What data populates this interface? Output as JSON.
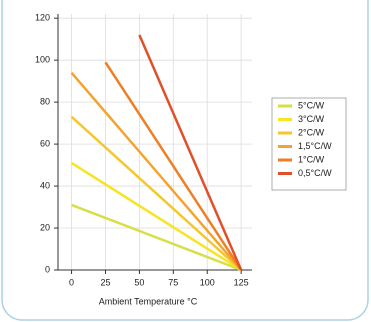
{
  "chart_data": {
    "type": "line",
    "x_label": "Ambient Temperature °C",
    "xlim": [
      -10,
      133
    ],
    "xticks": [
      0,
      25,
      50,
      75,
      100,
      125
    ],
    "ylim": [
      0,
      122
    ],
    "yticks": [
      0,
      20,
      40,
      60,
      80,
      100,
      120
    ],
    "grid": true,
    "legend": "right",
    "series": [
      {
        "name": "5°C/W",
        "color": "#d6df45",
        "x": [
          0,
          125
        ],
        "values": [
          31,
          0
        ]
      },
      {
        "name": "3°C/W",
        "color": "#f6e425",
        "x": [
          0,
          125
        ],
        "values": [
          51,
          0
        ]
      },
      {
        "name": "2°C/W",
        "color": "#f6c72c",
        "x": [
          0,
          125
        ],
        "values": [
          73,
          0
        ]
      },
      {
        "name": "1,5°C/W",
        "color": "#f4a42e",
        "x": [
          0,
          125
        ],
        "values": [
          94,
          0
        ]
      },
      {
        "name": "1°C/W",
        "color": "#ee7f26",
        "x": [
          25,
          125
        ],
        "values": [
          99,
          0
        ]
      },
      {
        "name": "0,5°C/W",
        "color": "#e0512b",
        "x": [
          50,
          125
        ],
        "values": [
          112,
          0
        ]
      }
    ]
  }
}
